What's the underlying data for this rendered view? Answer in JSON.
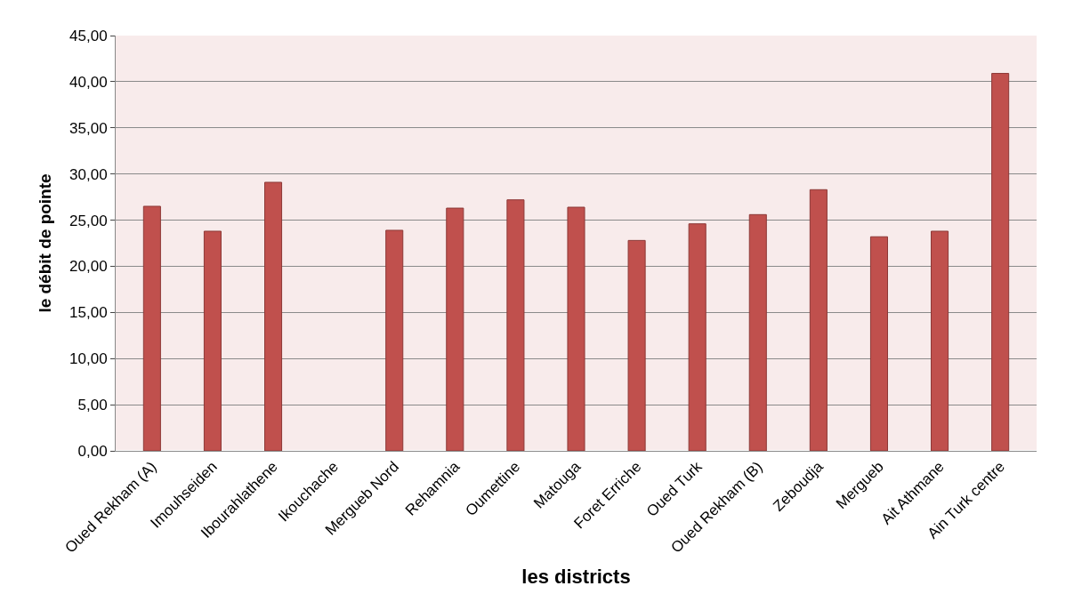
{
  "chart_data": {
    "type": "bar",
    "xlabel": "les districts",
    "ylabel": "le débit de pointe",
    "categories": [
      "Oued Rekham (A)",
      "Imouhseiden",
      "Ibourahlathene",
      "Ikouchache",
      "Mergueb Nord",
      "Rehamnia",
      "Oumettine",
      "Matouga",
      "Foret Erriche",
      "Oued Turk",
      "Oued Rekham (B)",
      "Zeboudja",
      "Mergueb",
      "Ait Athmane",
      "Ain Turk centre"
    ],
    "values": [
      26.5,
      23.8,
      29.1,
      null,
      23.9,
      26.3,
      27.2,
      26.4,
      22.8,
      24.6,
      25.6,
      28.3,
      23.2,
      23.8,
      40.9
    ],
    "color": "#c0504d",
    "ylim": [
      0,
      45
    ],
    "yticks": [
      {
        "value": 0,
        "label": "0,00"
      },
      {
        "value": 5,
        "label": "5,00"
      },
      {
        "value": 10,
        "label": "10,00"
      },
      {
        "value": 15,
        "label": "15,00"
      },
      {
        "value": 20,
        "label": "20,00"
      },
      {
        "value": 25,
        "label": "25,00"
      },
      {
        "value": 30,
        "label": "30,00"
      },
      {
        "value": 35,
        "label": "35,00"
      },
      {
        "value": 40,
        "label": "40,00"
      },
      {
        "value": 45,
        "label": "45,00"
      }
    ],
    "grid": "y"
  }
}
